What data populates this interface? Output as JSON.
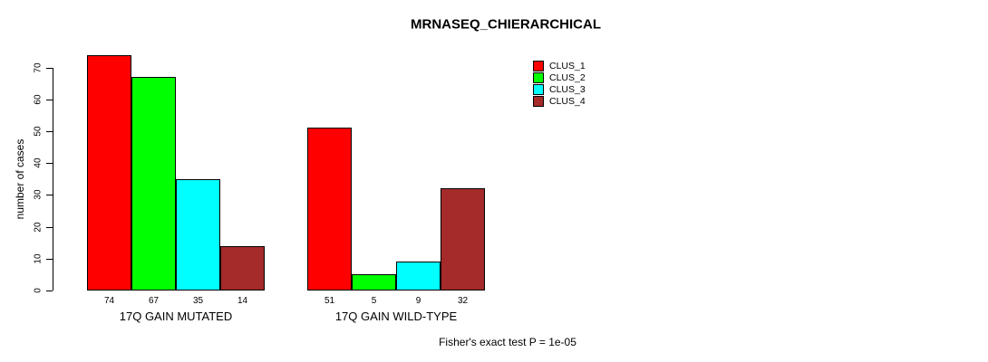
{
  "chart_data": {
    "type": "bar",
    "title": "MRNASEQ_CHIERARCHICAL",
    "ylabel": "number of cases",
    "ylim": [
      0,
      70
    ],
    "yticks": [
      0,
      10,
      20,
      30,
      40,
      50,
      60,
      70
    ],
    "categories": [
      "17Q GAIN MUTATED",
      "17Q GAIN WILD-TYPE"
    ],
    "groups": [
      {
        "label": "17Q GAIN MUTATED",
        "values": [
          74,
          67,
          35,
          14
        ]
      },
      {
        "label": "17Q GAIN WILD-TYPE",
        "values": [
          51,
          5,
          9,
          32
        ]
      }
    ],
    "series": [
      {
        "name": "CLUS_1",
        "color": "#FF0000"
      },
      {
        "name": "CLUS_2",
        "color": "#00FF00"
      },
      {
        "name": "CLUS_3",
        "color": "#00FFFF"
      },
      {
        "name": "CLUS_4",
        "color": "#A52A2A"
      }
    ],
    "bar_value_labels": true,
    "legend_position": "top-right",
    "grid": false,
    "background": "#FFFFFF",
    "footnote": "Fisher's exact test P = 1e-05"
  }
}
